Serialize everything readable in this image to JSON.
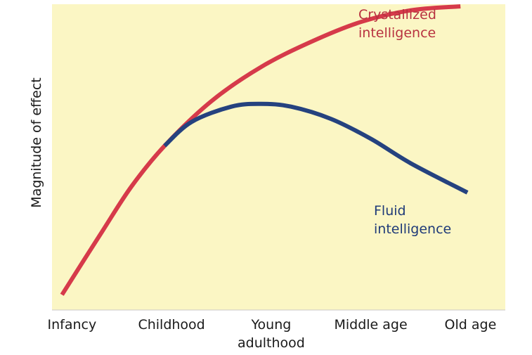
{
  "chart_data": {
    "type": "line",
    "title": "",
    "xlabel": "",
    "ylabel": "Magnitude of effect",
    "x_categories": [
      "Infancy",
      "Childhood",
      "Young adulthood",
      "Middle age",
      "Old age"
    ],
    "x_category_lines": {
      "Young adulthood": [
        "Young",
        "adulthood"
      ]
    },
    "xlim": [
      -0.2,
      4.35
    ],
    "ylim": [
      0,
      100
    ],
    "grid": false,
    "plot_background": "#fbf6c4",
    "series": [
      {
        "name": "Crystallized intelligence",
        "label_lines": [
          "Crystallized",
          "intelligence"
        ],
        "color": "#d63a4a",
        "text_color": "#b83240",
        "x": [
          -0.1,
          0.3,
          0.6,
          0.93,
          1.4,
          1.9,
          2.4,
          2.9,
          3.4,
          3.9
        ],
        "y": [
          5.0,
          25.5,
          40.5,
          53.7,
          68.3,
          79.5,
          87.7,
          94.2,
          98.0,
          99.3
        ]
      },
      {
        "name": "Fluid intelligence",
        "label_lines": [
          "Fluid",
          "intelligence"
        ],
        "color": "#25427f",
        "text_color": "#1f3a78",
        "x": [
          0.93,
          1.2,
          1.6,
          1.9,
          2.2,
          2.6,
          3.0,
          3.4,
          3.97
        ],
        "y": [
          53.7,
          61.5,
          66.5,
          67.4,
          66.5,
          62.5,
          56.0,
          48.0,
          38.4
        ]
      }
    ]
  }
}
